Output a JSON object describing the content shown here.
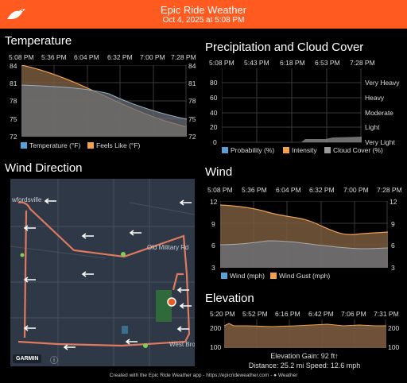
{
  "header": {
    "title": "Epic Ride Weather",
    "subtitle": "Oct 4, 2025 at 5:08 PM"
  },
  "temperature": {
    "title": "Temperature",
    "times": [
      "5:08 PM",
      "5:36 PM",
      "6:04 PM",
      "6:32 PM",
      "7:00 PM",
      "7:28 PM"
    ],
    "yticks": [
      "84",
      "81",
      "78",
      "75",
      "72"
    ],
    "legend": [
      {
        "label": "Temperature (°F)",
        "color": "#5aa0d8"
      },
      {
        "label": "Feels Like (°F)",
        "color": "#f0a050"
      }
    ]
  },
  "precip": {
    "title": "Precipitation and Cloud Cover",
    "times": [
      "5:08 PM",
      "5:43 PM",
      "6:18 PM",
      "6:53 PM",
      "7:28 PM"
    ],
    "yticks": [
      "80",
      "60",
      "40",
      "20",
      "0"
    ],
    "levels": [
      "Very Heavy",
      "Heavy",
      "Moderate",
      "Light",
      "Very Light"
    ],
    "legend": [
      {
        "label": "Probability (%)",
        "color": "#5aa0d8"
      },
      {
        "label": "Intensity",
        "color": "#f0a050"
      },
      {
        "label": "Cloud Cover (%)",
        "color": "#9a9a9a"
      }
    ]
  },
  "wind_direction": {
    "title": "Wind Direction",
    "map_labels": {
      "town": "wfordsville",
      "road1": "Old Military Rd",
      "road2": "West Bro"
    },
    "attribution": {
      "brand": "GARMIN",
      "info": "ⓘ"
    }
  },
  "wind": {
    "title": "Wind",
    "times": [
      "5:08 PM",
      "5:36 PM",
      "6:04 PM",
      "6:32 PM",
      "7:00 PM",
      "7:28 PM"
    ],
    "yticks": [
      "12",
      "9",
      "6",
      "3"
    ],
    "legend": [
      {
        "label": "Wind (mph)",
        "color": "#5aa0d8"
      },
      {
        "label": "Wind Gust (mph)",
        "color": "#f0a050"
      }
    ]
  },
  "elevation": {
    "title": "Elevation",
    "times": [
      "5:20 PM",
      "5:52 PM",
      "6:16 PM",
      "6:42 PM",
      "7:06 PM",
      "7:31 PM"
    ],
    "yticks": [
      "200",
      "100"
    ],
    "gain": "Elevation Gain: 92 ft↑",
    "stats": "Distance: 25.2 mi   Speed: 12.6 mph"
  },
  "footer": "Created with the Epic Ride Weather app - https://epicrideweather.com - ● Weather"
}
